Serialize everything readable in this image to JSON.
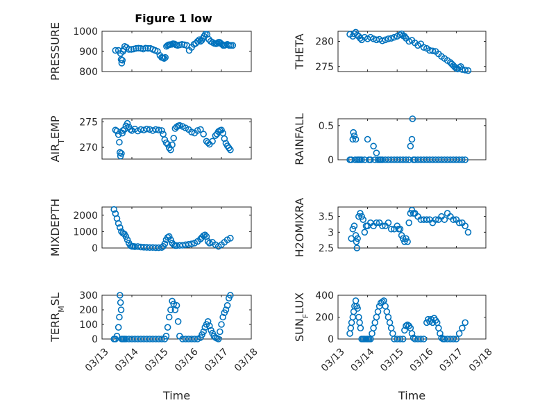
{
  "figure_title": "Figure 1 low",
  "colors": {
    "marker": "#0072BD",
    "axes": "#262626",
    "grid": "#d9d9d9"
  },
  "chart_data": [
    {
      "id": "pressure",
      "type": "scatter",
      "ylabel": "PRESSURE",
      "title": "Figure 1 low",
      "xlim": [
        13,
        18
      ],
      "ylim": [
        800,
        1000
      ],
      "yticks": [
        800,
        900,
        1000
      ],
      "yticklabels": [
        "800",
        "900",
        "1000"
      ],
      "xticks": [
        13,
        14,
        15,
        16,
        17,
        18
      ],
      "xticklabels": [],
      "grid": true,
      "x": [
        13.45,
        13.55,
        13.62,
        13.64,
        13.66,
        13.68,
        13.7,
        13.73,
        13.76,
        13.82,
        13.9,
        13.98,
        14.06,
        14.14,
        14.22,
        14.3,
        14.38,
        14.46,
        14.54,
        14.62,
        14.7,
        14.78,
        14.86,
        14.94,
        15.0,
        15.04,
        15.08,
        15.12,
        15.16,
        15.2,
        15.24,
        15.28,
        15.33,
        15.38,
        15.43,
        15.48,
        15.53,
        15.6,
        15.68,
        15.76,
        15.84,
        15.92,
        16.0,
        16.08,
        16.14,
        16.2,
        16.26,
        16.3,
        16.34,
        16.38,
        16.42,
        16.46,
        16.52,
        16.58,
        16.64,
        16.7,
        16.76,
        16.82,
        16.86,
        16.9,
        16.94,
        16.98,
        17.02,
        17.06,
        17.1,
        17.14,
        17.2,
        17.26,
        17.32,
        17.38
      ],
      "y": [
        905,
        905,
        890,
        860,
        842,
        856,
        900,
        910,
        925,
        920,
        910,
        910,
        912,
        915,
        916,
        915,
        912,
        916,
        915,
        915,
        910,
        905,
        900,
        880,
        870,
        868,
        865,
        870,
        925,
        930,
        933,
        934,
        935,
        938,
        937,
        932,
        930,
        932,
        935,
        933,
        930,
        905,
        920,
        935,
        940,
        950,
        958,
        950,
        955,
        965,
        975,
        985,
        985,
        960,
        950,
        945,
        940,
        938,
        940,
        945,
        945,
        940,
        935,
        930,
        930,
        932,
        935,
        930,
        930,
        930
      ]
    },
    {
      "id": "theta",
      "type": "scatter",
      "ylabel": "THETA",
      "xlim": [
        13,
        18
      ],
      "ylim": [
        274,
        282
      ],
      "yticks": [
        275,
        280
      ],
      "yticklabels": [
        "275",
        "280"
      ],
      "xticks": [
        13,
        14,
        15,
        16,
        17,
        18
      ],
      "xticklabels": [],
      "grid": true,
      "x": [
        13.4,
        13.5,
        13.55,
        13.6,
        13.65,
        13.7,
        13.75,
        13.8,
        13.9,
        14.0,
        14.1,
        14.2,
        14.3,
        14.4,
        14.5,
        14.6,
        14.7,
        14.8,
        14.9,
        15.0,
        15.1,
        15.15,
        15.2,
        15.25,
        15.3,
        15.4,
        15.5,
        15.6,
        15.7,
        15.8,
        15.9,
        16.0,
        16.1,
        16.2,
        16.3,
        16.4,
        16.5,
        16.6,
        16.7,
        16.8,
        16.85,
        16.9,
        16.95,
        17.0,
        17.05,
        17.1,
        17.15,
        17.2,
        17.3,
        17.4
      ],
      "y": [
        281.4,
        281,
        281.5,
        281.8,
        281.2,
        281,
        280.6,
        280.3,
        280.8,
        280.5,
        280.8,
        280.5,
        280.3,
        280.4,
        280.1,
        280.3,
        280.5,
        280.6,
        280.8,
        281,
        281.3,
        281.5,
        281.1,
        281,
        280.6,
        280,
        280.2,
        279.7,
        279.2,
        279.5,
        278.8,
        278.6,
        278.2,
        278.1,
        278,
        277.5,
        277,
        276.6,
        276.2,
        275.8,
        275.5,
        275.2,
        274.9,
        274.6,
        274.5,
        274.8,
        275,
        274.4,
        274.3,
        274.2
      ]
    },
    {
      "id": "air-temp",
      "type": "scatter",
      "ylabel": "AIR_TEMP",
      "xlim": [
        13,
        18
      ],
      "ylim": [
        267.7,
        275.6
      ],
      "yticks": [
        270,
        275
      ],
      "yticklabels": [
        "270",
        "275"
      ],
      "xticks": [
        13,
        14,
        15,
        16,
        17,
        18
      ],
      "xticklabels": [],
      "grid": true,
      "x": [
        13.45,
        13.5,
        13.55,
        13.58,
        13.6,
        13.62,
        13.65,
        13.68,
        13.7,
        13.75,
        13.8,
        13.85,
        13.9,
        13.95,
        14.0,
        14.1,
        14.2,
        14.3,
        14.4,
        14.5,
        14.6,
        14.7,
        14.8,
        14.9,
        15.0,
        15.05,
        15.1,
        15.15,
        15.2,
        15.25,
        15.3,
        15.35,
        15.4,
        15.45,
        15.5,
        15.55,
        15.6,
        15.7,
        15.8,
        15.9,
        16.0,
        16.1,
        16.2,
        16.3,
        16.4,
        16.5,
        16.55,
        16.6,
        16.7,
        16.8,
        16.85,
        16.9,
        16.95,
        17.0,
        17.05,
        17.1,
        17.15,
        17.2,
        17.25,
        17.3
      ],
      "y": [
        273.4,
        273.2,
        272.5,
        271,
        269,
        268.3,
        268.8,
        272.8,
        273.3,
        273.5,
        274.2,
        274.7,
        274,
        273.5,
        273.3,
        273.6,
        273.2,
        273.5,
        273.4,
        273.6,
        273.5,
        273.3,
        273.5,
        273.4,
        273.3,
        272.6,
        271.5,
        270.9,
        270.6,
        269.9,
        269.5,
        270.5,
        271.8,
        273.7,
        274,
        274.2,
        274.3,
        274.1,
        273.8,
        273.5,
        273,
        272.8,
        273.3,
        273.5,
        272.6,
        271.2,
        270.9,
        270.6,
        271.2,
        272.3,
        272.6,
        273.1,
        273.3,
        273.4,
        272.8,
        271.7,
        270.8,
        270.3,
        269.9,
        269.5
      ]
    },
    {
      "id": "rainfall",
      "type": "scatter",
      "ylabel": "RAINFALL",
      "xlim": [
        13,
        18
      ],
      "ylim": [
        0,
        0.6
      ],
      "yticks": [
        0,
        0.5
      ],
      "yticklabels": [
        "0",
        "0.5"
      ],
      "xticks": [
        13,
        14,
        15,
        16,
        17,
        18
      ],
      "xticklabels": [],
      "grid": true,
      "x": [
        13.4,
        13.45,
        13.5,
        13.52,
        13.55,
        13.58,
        13.6,
        13.65,
        13.7,
        13.75,
        13.8,
        13.9,
        14.0,
        14.05,
        14.1,
        14.2,
        14.25,
        14.3,
        14.35,
        14.4,
        14.45,
        14.5,
        14.6,
        14.7,
        14.8,
        14.9,
        15.0,
        15.1,
        15.2,
        15.3,
        15.4,
        15.45,
        15.5,
        15.52,
        15.55,
        15.6,
        15.7,
        15.8,
        15.9,
        16.0,
        16.1,
        16.2,
        16.3,
        16.4,
        16.5,
        16.6,
        16.7,
        16.8,
        16.9,
        17.0,
        17.1,
        17.2,
        17.3
      ],
      "y": [
        0,
        0,
        0.3,
        0.4,
        0.35,
        0,
        0.3,
        0,
        0,
        0,
        0,
        0,
        0.3,
        0,
        0,
        0.2,
        0,
        0.1,
        0,
        0,
        0,
        0,
        0,
        0,
        0,
        0,
        0,
        0,
        0,
        0,
        0,
        0.2,
        0.3,
        0.6,
        0,
        0,
        0,
        0,
        0,
        0,
        0,
        0,
        0,
        0,
        0,
        0,
        0,
        0,
        0,
        0,
        0,
        0,
        0
      ]
    },
    {
      "id": "mixdepth",
      "type": "scatter",
      "ylabel": "MIXDEPTH",
      "xlim": [
        13,
        18
      ],
      "ylim": [
        0,
        2500
      ],
      "yticks": [
        0,
        1000,
        2000
      ],
      "yticklabels": [
        "0",
        "1000",
        "2000"
      ],
      "xticks": [
        13,
        14,
        15,
        16,
        17,
        18
      ],
      "xticklabels": [],
      "grid": true,
      "x": [
        13.4,
        13.45,
        13.5,
        13.55,
        13.6,
        13.65,
        13.7,
        13.75,
        13.8,
        13.85,
        13.9,
        13.95,
        14.0,
        14.05,
        14.1,
        14.2,
        14.3,
        14.4,
        14.5,
        14.6,
        14.7,
        14.8,
        14.9,
        15.0,
        15.05,
        15.1,
        15.15,
        15.2,
        15.25,
        15.3,
        15.35,
        15.4,
        15.45,
        15.5,
        15.6,
        15.7,
        15.8,
        15.9,
        16.0,
        16.1,
        16.2,
        16.3,
        16.35,
        16.4,
        16.45,
        16.5,
        16.55,
        16.6,
        16.7,
        16.8,
        16.9,
        17.0,
        17.1,
        17.2,
        17.3
      ],
      "y": [
        2350,
        2100,
        1800,
        1500,
        1250,
        1000,
        900,
        850,
        700,
        500,
        300,
        150,
        100,
        100,
        80,
        90,
        60,
        50,
        40,
        30,
        30,
        20,
        20,
        30,
        100,
        250,
        500,
        650,
        700,
        500,
        300,
        200,
        150,
        150,
        160,
        170,
        200,
        220,
        250,
        300,
        400,
        550,
        650,
        750,
        800,
        700,
        400,
        300,
        350,
        200,
        100,
        200,
        350,
        500,
        600
      ]
    },
    {
      "id": "h2omixra",
      "type": "scatter",
      "ylabel": "H2OMIXRA",
      "xlim": [
        13,
        18
      ],
      "ylim": [
        2.5,
        3.8
      ],
      "yticks": [
        2.5,
        3,
        3.5
      ],
      "yticklabels": [
        "2.5",
        "3",
        "3.5"
      ],
      "xticks": [
        13,
        14,
        15,
        16,
        17,
        18
      ],
      "xticklabels": [],
      "grid": true,
      "x": [
        13.45,
        13.5,
        13.55,
        13.6,
        13.62,
        13.64,
        13.66,
        13.7,
        13.75,
        13.8,
        13.85,
        13.9,
        13.95,
        14.0,
        14.1,
        14.2,
        14.3,
        14.4,
        14.5,
        14.6,
        14.7,
        14.8,
        14.9,
        15.0,
        15.05,
        15.1,
        15.15,
        15.2,
        15.25,
        15.3,
        15.35,
        15.4,
        15.45,
        15.5,
        15.55,
        15.6,
        15.7,
        15.8,
        15.9,
        16.0,
        16.1,
        16.2,
        16.3,
        16.4,
        16.5,
        16.6,
        16.7,
        16.8,
        16.9,
        17.0,
        17.1,
        17.2,
        17.3,
        17.4
      ],
      "y": [
        2.8,
        3.1,
        3.2,
        2.9,
        2.7,
        2.5,
        2.8,
        3.5,
        3.6,
        3.5,
        3.4,
        3.0,
        3.2,
        3.2,
        3.3,
        3.2,
        3.3,
        3.3,
        3.2,
        3.2,
        3.3,
        3.1,
        3.1,
        3.2,
        3.1,
        3.1,
        2.9,
        2.8,
        2.7,
        2.8,
        2.7,
        3.3,
        3.6,
        3.7,
        3.6,
        3.6,
        3.5,
        3.4,
        3.4,
        3.4,
        3.4,
        3.3,
        3.4,
        3.4,
        3.5,
        3.4,
        3.6,
        3.5,
        3.4,
        3.4,
        3.3,
        3.3,
        3.2,
        3.0
      ]
    },
    {
      "id": "terr-msl",
      "type": "scatter",
      "ylabel": "TERR_MSL",
      "xlim": [
        13,
        18
      ],
      "ylim": [
        0,
        300
      ],
      "yticks": [
        0,
        100,
        200,
        300
      ],
      "yticklabels": [
        "0",
        "100",
        "200",
        "300"
      ],
      "xticks": [
        13,
        14,
        15,
        16,
        17,
        18
      ],
      "xticklabels": [
        "03/13",
        "03/14",
        "03/15",
        "03/16",
        "03/17",
        "03/18"
      ],
      "xlabel": "Time",
      "grid": true,
      "x": [
        13.4,
        13.45,
        13.5,
        13.55,
        13.58,
        13.6,
        13.62,
        13.64,
        13.66,
        13.7,
        13.75,
        13.8,
        13.9,
        14.0,
        14.1,
        14.2,
        14.3,
        14.4,
        14.5,
        14.6,
        14.7,
        14.8,
        14.9,
        15.0,
        15.1,
        15.15,
        15.2,
        15.25,
        15.3,
        15.35,
        15.4,
        15.45,
        15.5,
        15.55,
        15.6,
        15.7,
        15.8,
        15.9,
        16.0,
        16.1,
        16.2,
        16.3,
        16.35,
        16.4,
        16.45,
        16.5,
        16.55,
        16.6,
        16.65,
        16.7,
        16.75,
        16.8,
        16.85,
        16.9,
        16.95,
        17.0,
        17.05,
        17.1,
        17.15,
        17.2,
        17.25,
        17.3
      ],
      "y": [
        0,
        0,
        20,
        80,
        150,
        300,
        250,
        200,
        0,
        0,
        0,
        0,
        0,
        0,
        0,
        0,
        0,
        0,
        0,
        0,
        0,
        0,
        0,
        0,
        0,
        20,
        80,
        150,
        200,
        260,
        240,
        200,
        230,
        120,
        20,
        0,
        0,
        0,
        0,
        0,
        0,
        10,
        30,
        50,
        80,
        100,
        120,
        90,
        60,
        40,
        20,
        10,
        5,
        0,
        50,
        100,
        150,
        180,
        200,
        230,
        280,
        300
      ]
    },
    {
      "id": "sun-flux",
      "type": "scatter",
      "ylabel": "SUN_FLUX",
      "xlim": [
        13,
        18
      ],
      "ylim": [
        0,
        400
      ],
      "yticks": [
        0,
        200,
        400
      ],
      "yticklabels": [
        "0",
        "200",
        "400"
      ],
      "xticks": [
        13,
        14,
        15,
        16,
        17,
        18
      ],
      "xticklabels": [
        "03/13",
        "03/14",
        "03/15",
        "03/16",
        "03/17",
        "03/18"
      ],
      "xlabel": "Time",
      "grid": true,
      "x": [
        13.4,
        13.43,
        13.46,
        13.5,
        13.53,
        13.56,
        13.6,
        13.63,
        13.66,
        13.7,
        13.73,
        13.76,
        13.8,
        13.85,
        13.9,
        13.95,
        14.0,
        14.05,
        14.1,
        14.15,
        14.2,
        14.25,
        14.3,
        14.35,
        14.4,
        14.45,
        14.5,
        14.55,
        14.6,
        14.65,
        14.7,
        14.75,
        14.8,
        14.85,
        14.9,
        15.0,
        15.1,
        15.2,
        15.25,
        15.3,
        15.35,
        15.4,
        15.45,
        15.5,
        15.55,
        15.6,
        15.7,
        15.8,
        15.9,
        16.0,
        16.05,
        16.1,
        16.15,
        16.2,
        16.25,
        16.3,
        16.35,
        16.4,
        16.45,
        16.5,
        16.55,
        16.6,
        16.7,
        16.8,
        16.9,
        17.0,
        17.1,
        17.2,
        17.3
      ],
      "y": [
        50,
        100,
        150,
        200,
        250,
        300,
        350,
        300,
        280,
        200,
        150,
        100,
        0,
        0,
        0,
        0,
        0,
        0,
        0,
        50,
        100,
        150,
        200,
        250,
        300,
        330,
        340,
        350,
        300,
        250,
        200,
        150,
        100,
        50,
        0,
        0,
        0,
        0,
        80,
        120,
        130,
        120,
        100,
        50,
        10,
        0,
        0,
        0,
        0,
        150,
        180,
        160,
        180,
        150,
        190,
        170,
        150,
        100,
        50,
        10,
        0,
        0,
        0,
        0,
        0,
        0,
        50,
        100,
        150
      ]
    }
  ]
}
